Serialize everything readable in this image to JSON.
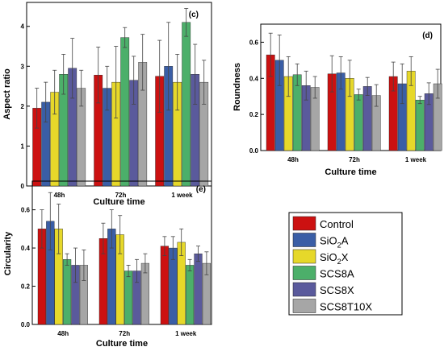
{
  "legend": {
    "entries": [
      {
        "label": "Control",
        "sub": "",
        "tail": ""
      },
      {
        "label": "SiO",
        "sub": "2",
        "tail": "A"
      },
      {
        "label": "SiO",
        "sub": "2",
        "tail": "X"
      },
      {
        "label": "SCS8A",
        "sub": "",
        "tail": ""
      },
      {
        "label": "SCS8X",
        "sub": "",
        "tail": ""
      },
      {
        "label": "SCS8T10X",
        "sub": "",
        "tail": ""
      }
    ]
  },
  "colors": [
    "#cc1111",
    "#3a5ea6",
    "#e6d82a",
    "#4caf6a",
    "#5a5a9c",
    "#a6a6a6"
  ],
  "chart_data": [
    {
      "type": "bar",
      "panel": "(c)",
      "xlabel": "Culture time",
      "ylabel": "Aspect ratio",
      "categories": [
        "48h",
        "72h",
        "1 week"
      ],
      "ylim": [
        0,
        4.6
      ],
      "yticks": [
        "0",
        "1",
        "2",
        "3",
        "4"
      ],
      "series": [
        {
          "name": "Control",
          "values": [
            1.95,
            2.78,
            2.75
          ],
          "errors": [
            0.5,
            0.7,
            0.9
          ]
        },
        {
          "name": "SiO2A",
          "values": [
            2.1,
            2.45,
            3.0
          ],
          "errors": [
            0.5,
            0.55,
            1.1
          ]
        },
        {
          "name": "SiO2X",
          "values": [
            2.35,
            2.6,
            2.6
          ],
          "errors": [
            0.55,
            0.9,
            0.7
          ]
        },
        {
          "name": "SCS8A",
          "values": [
            2.8,
            3.72,
            4.1
          ],
          "errors": [
            0.5,
            0.25,
            0.35
          ]
        },
        {
          "name": "SCS8X",
          "values": [
            2.95,
            2.65,
            2.8
          ],
          "errors": [
            0.75,
            0.6,
            0.75
          ]
        },
        {
          "name": "SCS8T10X",
          "values": [
            2.45,
            3.1,
            2.6
          ],
          "errors": [
            0.45,
            0.7,
            0.55
          ]
        }
      ]
    },
    {
      "type": "bar",
      "panel": "(d)",
      "xlabel": "Culture time",
      "ylabel": "Roundness",
      "categories": [
        "48h",
        "72h",
        "1 week"
      ],
      "ylim": [
        0,
        0.7
      ],
      "yticks": [
        "0.0",
        "0.2",
        "0.4",
        "0.6"
      ],
      "series": [
        {
          "name": "Control",
          "values": [
            0.53,
            0.425,
            0.41
          ],
          "errors": [
            0.12,
            0.1,
            0.08
          ]
        },
        {
          "name": "SiO2A",
          "values": [
            0.5,
            0.43,
            0.37
          ],
          "errors": [
            0.14,
            0.09,
            0.11
          ]
        },
        {
          "name": "SiO2X",
          "values": [
            0.41,
            0.4,
            0.44
          ],
          "errors": [
            0.11,
            0.1,
            0.08
          ]
        },
        {
          "name": "SCS8A",
          "values": [
            0.42,
            0.31,
            0.28
          ],
          "errors": [
            0.06,
            0.03,
            0.02
          ]
        },
        {
          "name": "SCS8X",
          "values": [
            0.36,
            0.355,
            0.315
          ],
          "errors": [
            0.08,
            0.05,
            0.06
          ]
        },
        {
          "name": "SCS8T10X",
          "values": [
            0.35,
            0.305,
            0.37
          ],
          "errors": [
            0.06,
            0.06,
            0.08
          ]
        }
      ]
    },
    {
      "type": "bar",
      "panel": "(e)",
      "xlabel": "Culture time",
      "ylabel": "Circularity",
      "categories": [
        "48h",
        "72h",
        "1 week"
      ],
      "ylim": [
        0,
        0.75
      ],
      "yticks": [
        "0.0",
        "0.2",
        "0.4",
        "0.6"
      ],
      "series": [
        {
          "name": "Control",
          "values": [
            0.5,
            0.45,
            0.41
          ],
          "errors": [
            0.1,
            0.08,
            0.05
          ]
        },
        {
          "name": "SiO2A",
          "values": [
            0.54,
            0.5,
            0.4
          ],
          "errors": [
            0.15,
            0.1,
            0.06
          ]
        },
        {
          "name": "SiO2X",
          "values": [
            0.5,
            0.47,
            0.43
          ],
          "errors": [
            0.13,
            0.1,
            0.07
          ]
        },
        {
          "name": "SCS8A",
          "values": [
            0.34,
            0.28,
            0.31
          ],
          "errors": [
            0.03,
            0.03,
            0.03
          ]
        },
        {
          "name": "SCS8X",
          "values": [
            0.31,
            0.28,
            0.37
          ],
          "errors": [
            0.09,
            0.06,
            0.04
          ]
        },
        {
          "name": "SCS8T10X",
          "values": [
            0.31,
            0.32,
            0.32
          ],
          "errors": [
            0.08,
            0.05,
            0.06
          ]
        }
      ]
    }
  ]
}
